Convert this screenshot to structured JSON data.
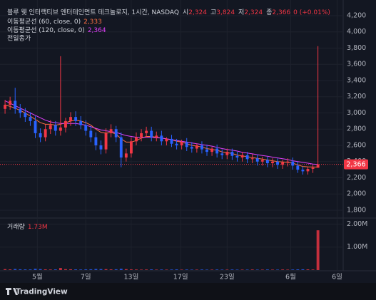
{
  "chart_data": {
    "type": "candlestick",
    "title": "블루 웻 인터랙티브 엔터테인먼트 테크놀로지, 1시간, NASDAQ",
    "ohlc_legend": [
      {
        "key": "시",
        "value": "2,324"
      },
      {
        "key": "고",
        "value": "3,824"
      },
      {
        "key": "저",
        "value": "2,324"
      },
      {
        "key": "종",
        "value": "2,366"
      }
    ],
    "change_label": "0 (+0.01%)",
    "x": [
      0,
      1,
      2,
      3,
      4,
      5,
      6,
      7,
      8,
      9,
      10,
      11,
      12,
      13,
      14,
      15,
      16,
      17,
      18,
      19,
      20,
      21,
      22,
      23,
      24,
      25,
      26,
      27,
      28,
      29,
      30,
      31,
      32,
      33,
      34,
      35,
      36,
      37,
      38,
      39,
      40,
      41,
      42,
      43,
      44,
      45,
      46,
      47,
      48,
      49,
      50,
      51,
      52,
      53,
      54,
      55,
      56,
      57,
      58,
      59,
      60,
      61,
      62
    ],
    "open": [
      3050,
      3100,
      3150,
      3050,
      3000,
      2950,
      2900,
      2750,
      2700,
      2800,
      2850,
      2780,
      2820,
      2900,
      2950,
      2900,
      2850,
      2780,
      2700,
      2600,
      2550,
      2750,
      2800,
      2700,
      2450,
      2500,
      2650,
      2700,
      2750,
      2780,
      2700,
      2720,
      2650,
      2680,
      2620,
      2600,
      2640,
      2580,
      2560,
      2600,
      2550,
      2520,
      2560,
      2500,
      2480,
      2520,
      2470,
      2450,
      2480,
      2430,
      2440,
      2400,
      2420,
      2380,
      2400,
      2360,
      2390,
      2400,
      2350,
      2300,
      2280,
      2310,
      2324
    ],
    "high": [
      3160,
      3200,
      3310,
      3110,
      3060,
      3010,
      2960,
      2810,
      2860,
      2910,
      2900,
      3700,
      2940,
      3010,
      3020,
      2960,
      2910,
      2840,
      2760,
      2660,
      2810,
      2860,
      2840,
      2760,
      2560,
      2700,
      2760,
      2800,
      2830,
      2830,
      2770,
      2780,
      2700,
      2730,
      2680,
      2670,
      2690,
      2640,
      2620,
      2650,
      2610,
      2580,
      2610,
      2550,
      2560,
      2560,
      2520,
      2520,
      2520,
      2490,
      2490,
      2460,
      2460,
      2440,
      2440,
      2420,
      2440,
      2450,
      2400,
      2340,
      2340,
      2360,
      3824
    ],
    "low": [
      2990,
      3040,
      2990,
      2940,
      2890,
      2840,
      2690,
      2640,
      2650,
      2740,
      2720,
      2720,
      2760,
      2840,
      2840,
      2800,
      2720,
      2640,
      2540,
      2490,
      2500,
      2700,
      2640,
      2330,
      2400,
      2450,
      2600,
      2650,
      2700,
      2650,
      2650,
      2600,
      2600,
      2580,
      2550,
      2550,
      2530,
      2510,
      2510,
      2500,
      2470,
      2470,
      2450,
      2430,
      2430,
      2420,
      2400,
      2400,
      2380,
      2380,
      2350,
      2350,
      2330,
      2330,
      2310,
      2310,
      2340,
      2300,
      2260,
      2240,
      2240,
      2260,
      2324
    ],
    "close": [
      3100,
      3150,
      3050,
      3000,
      2950,
      2900,
      2750,
      2700,
      2800,
      2850,
      2780,
      2820,
      2900,
      2950,
      2900,
      2850,
      2780,
      2700,
      2600,
      2550,
      2750,
      2800,
      2700,
      2450,
      2500,
      2650,
      2700,
      2750,
      2780,
      2700,
      2720,
      2650,
      2680,
      2620,
      2600,
      2640,
      2580,
      2560,
      2600,
      2550,
      2520,
      2560,
      2500,
      2480,
      2520,
      2470,
      2450,
      2480,
      2430,
      2440,
      2400,
      2420,
      2380,
      2400,
      2360,
      2390,
      2400,
      2350,
      2300,
      2280,
      2310,
      2324,
      2366
    ],
    "up_color": "#f23645",
    "down_color": "#2962ff",
    "series": [
      {
        "name": "이동평균선 (60, close, 0)",
        "value_label": "2,333",
        "color": "#ff7043",
        "values": [
          3100,
          3080,
          3060,
          3030,
          3000,
          2960,
          2920,
          2880,
          2860,
          2860,
          2850,
          2860,
          2880,
          2900,
          2910,
          2900,
          2880,
          2850,
          2800,
          2760,
          2750,
          2760,
          2740,
          2680,
          2640,
          2640,
          2660,
          2690,
          2710,
          2710,
          2700,
          2690,
          2680,
          2670,
          2650,
          2640,
          2620,
          2600,
          2590,
          2580,
          2560,
          2550,
          2540,
          2520,
          2510,
          2500,
          2480,
          2470,
          2460,
          2450,
          2440,
          2430,
          2420,
          2410,
          2400,
          2395,
          2390,
          2380,
          2360,
          2340,
          2335,
          2333,
          2333
        ]
      },
      {
        "name": "이동평균선 (120, close, 0)",
        "value_label": "2,364",
        "color": "#e040fb",
        "values": [
          3150,
          3120,
          3090,
          3060,
          3030,
          3000,
          2970,
          2940,
          2910,
          2890,
          2880,
          2870,
          2870,
          2870,
          2870,
          2860,
          2850,
          2830,
          2810,
          2790,
          2780,
          2770,
          2760,
          2740,
          2720,
          2710,
          2700,
          2700,
          2700,
          2700,
          2695,
          2690,
          2680,
          2670,
          2660,
          2650,
          2640,
          2630,
          2620,
          2610,
          2600,
          2590,
          2575,
          2560,
          2550,
          2540,
          2530,
          2515,
          2505,
          2495,
          2485,
          2475,
          2465,
          2455,
          2445,
          2435,
          2425,
          2410,
          2400,
          2390,
          2380,
          2370,
          2364
        ]
      }
    ],
    "previous_close_label": "전일종가",
    "last_price": {
      "value": 2366,
      "label": "2,366"
    },
    "xlim": [
      -1,
      67
    ],
    "xticks": [
      {
        "value": 6.4,
        "label": "5월"
      },
      {
        "value": 16,
        "label": "7일"
      },
      {
        "value": 25,
        "label": "13일"
      },
      {
        "value": 34.8,
        "label": "17일"
      },
      {
        "value": 44,
        "label": "23일"
      },
      {
        "value": 56.6,
        "label": "6월"
      },
      {
        "value": 65.8,
        "label": "6일"
      }
    ],
    "ylim": [
      1712,
      4323
    ],
    "yticks": [
      {
        "value": 1800,
        "label": "1,800"
      },
      {
        "value": 2000,
        "label": "2,000"
      },
      {
        "value": 2200,
        "label": "2,200"
      },
      {
        "value": 2400,
        "label": "2,400"
      },
      {
        "value": 2600,
        "label": "2,600"
      },
      {
        "value": 2800,
        "label": "2,800"
      },
      {
        "value": 3000,
        "label": "3,000"
      },
      {
        "value": 3200,
        "label": "3,200"
      },
      {
        "value": 3400,
        "label": "3,400"
      },
      {
        "value": 3600,
        "label": "3,600"
      },
      {
        "value": 3800,
        "label": "3,800"
      },
      {
        "value": 4000,
        "label": "4,000"
      },
      {
        "value": 4200,
        "label": "4,200"
      }
    ],
    "volume": {
      "label": "거래량",
      "value_label": "1.73M",
      "values": [
        40000,
        30000,
        50000,
        35000,
        30000,
        28000,
        60000,
        45000,
        30000,
        25000,
        30000,
        90000,
        40000,
        35000,
        30000,
        25000,
        30000,
        35000,
        50000,
        45000,
        40000,
        30000,
        35000,
        60000,
        40000,
        30000,
        25000,
        20000,
        25000,
        30000,
        20000,
        25000,
        20000,
        25000,
        30000,
        20000,
        25000,
        20000,
        20000,
        25000,
        20000,
        20000,
        25000,
        20000,
        20000,
        25000,
        20000,
        20000,
        20000,
        25000,
        20000,
        20000,
        25000,
        20000,
        20000,
        25000,
        20000,
        25000,
        30000,
        35000,
        30000,
        25000,
        1730000
      ],
      "ylim": [
        0,
        2200000
      ],
      "yticks": [
        {
          "value": 1000000,
          "label": "1.00M"
        },
        {
          "value": 2000000,
          "label": "2.00M"
        }
      ]
    },
    "grid": true
  },
  "brand": "TradingView"
}
